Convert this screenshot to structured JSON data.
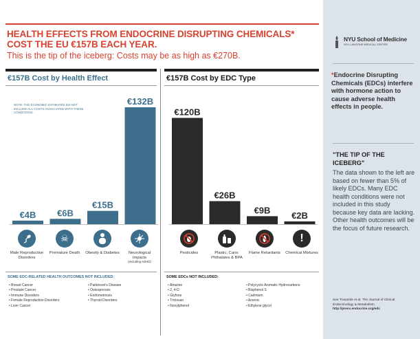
{
  "headline": "HEALTH EFFECTS FROM ENDOCRINE DISRUPTING CHEMICALS* COST THE EU €157B EACH YEAR.",
  "subhead": "This is the tip of the iceberg: Costs may be as high as €270B.",
  "colors": {
    "accent_red": "#d9412f",
    "health_blue": "#3d6f8c",
    "edc_dark": "#2a2a2a",
    "sidebar_bg": "#dde3ea"
  },
  "chart_data": [
    {
      "type": "bar",
      "title": "€157B Cost by Health Effect",
      "categories": [
        "Male Reproductive Disorders",
        "Premature Death",
        "Obesity & Diabetes",
        "Neurological Impacts (including ADHD)"
      ],
      "values": [
        4,
        6,
        15,
        132
      ],
      "value_labels": [
        "€4B",
        "€6B",
        "€15B",
        "€132B"
      ],
      "unit": "billion €",
      "note": "NOTE: The economic estimates do not include all costs associated with these conditions.",
      "icons": [
        "sperm-icon",
        "skull-crossbones-icon",
        "person-icon",
        "brain-neuron-icon"
      ]
    },
    {
      "type": "bar",
      "title": "€157B Cost by EDC Type",
      "categories": [
        "Pesticides",
        "Plastic, Cans: Phthalates & BPA",
        "Flame Retardants",
        "Chemical Mixtures"
      ],
      "values": [
        120,
        26,
        9,
        2
      ],
      "value_labels": [
        "€120B",
        "€26B",
        "€9B",
        "€2B"
      ],
      "unit": "billion €",
      "icons": [
        "bug-icon",
        "bottles-icon",
        "flame-icon",
        "exclamation-icon"
      ]
    }
  ],
  "labels": {
    "health": [
      {
        "main": "Male Reproductive Disorders",
        "sub": ""
      },
      {
        "main": "Premature Death",
        "sub": ""
      },
      {
        "main": "Obesity & Diabetes",
        "sub": ""
      },
      {
        "main": "Neurological Impacts",
        "sub": "(including ADHD)"
      }
    ],
    "edc": [
      {
        "main": "Pesticides",
        "sub": ""
      },
      {
        "main": "Plastic, Cans: Phthalates & BPA",
        "sub": ""
      },
      {
        "main": "Flame Retardants",
        "sub": ""
      },
      {
        "main": "Chemical Mixtures",
        "sub": ""
      }
    ]
  },
  "not_included_health": {
    "title": "SOME EDC-RELATED HEALTH OUTCOMES NOT INCLUDED:",
    "col1": [
      "Breast Cancer",
      "Prostate Cancer",
      "Immune Disorders",
      "Female Reproductive Disorders",
      "Liver Cancer"
    ],
    "col2": [
      "Parkinson's Disease",
      "Osteoporosis",
      "Endometriosis",
      "Thyroid Disorders"
    ]
  },
  "not_included_edc": {
    "title": "SOME EDCs NOT INCLUDED:",
    "col1": [
      "Atrazine",
      "2, 4-D",
      "Glyfone",
      "Triclosan",
      "Nonylphenol"
    ],
    "col2": [
      "Polycyclic Aromatic Hydrocarbons",
      "Bisphenol S",
      "Cadmium",
      "Arsenic",
      "Ethylene glycol"
    ]
  },
  "sidebar": {
    "logo_text": "NYU School of Medicine",
    "logo_sub": "NYU LANGONE MEDICAL CENTER",
    "definition_ast": "*",
    "definition": "Endocrine Disrupting Chemicals (EDCs) interfere with hormone action to cause adverse health effects in people.",
    "iceberg_heading": "\"THE TIP OF THE ICEBERG\"",
    "iceberg_body": "The data shown to the left are based on fewer than 5% of likely EDCs. Many EDC health conditions were not included in this study because key data are lacking. Other health outcomes will be the focus of future research.",
    "citation": "See Trasande et al. The Journal of Clinical Endocrinology & Metabolism",
    "citation_url": "http://press.endocrine.org/edc"
  }
}
